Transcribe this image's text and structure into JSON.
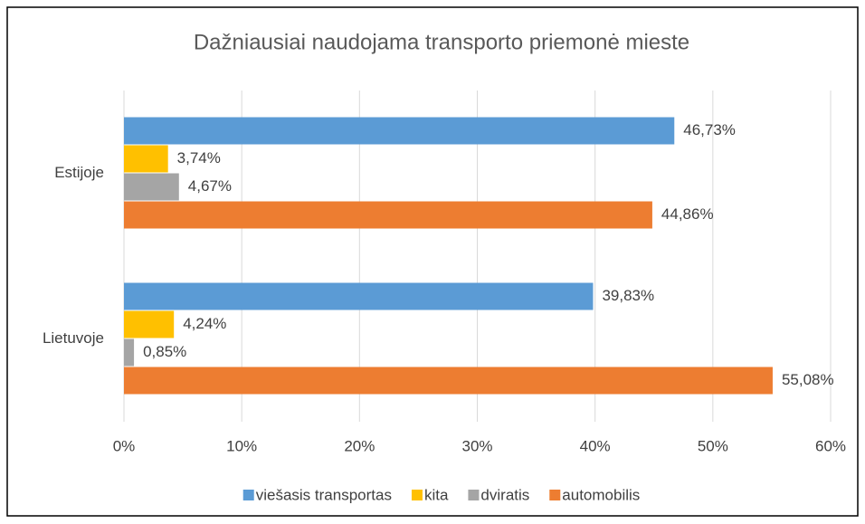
{
  "chart_data": {
    "type": "barh",
    "title": "Dažniausiai naudojama transporto priemonė mieste",
    "categories": [
      "Estijoje",
      "Lietuvoje"
    ],
    "series": [
      {
        "name": "viešasis transportas",
        "color": "#5b9bd5",
        "values": [
          46.73,
          39.83
        ],
        "value_labels": [
          "46,73%",
          "39,83%"
        ]
      },
      {
        "name": "kita",
        "color": "#ffc000",
        "values": [
          3.74,
          4.24
        ],
        "value_labels": [
          "3,74%",
          "4,24%"
        ]
      },
      {
        "name": "dviratis",
        "color": "#a5a5a5",
        "values": [
          4.67,
          0.85
        ],
        "value_labels": [
          "4,67%",
          "0,85%"
        ]
      },
      {
        "name": "automobilis",
        "color": "#ed7d31",
        "values": [
          44.86,
          55.08
        ],
        "value_labels": [
          "44,86%",
          "55,08%"
        ]
      }
    ],
    "xlim": [
      0,
      60
    ],
    "xticks": [
      {
        "value": 0,
        "label": "0%"
      },
      {
        "value": 10,
        "label": "10%"
      },
      {
        "value": 20,
        "label": "20%"
      },
      {
        "value": 30,
        "label": "30%"
      },
      {
        "value": 40,
        "label": "40%"
      },
      {
        "value": 50,
        "label": "50%"
      },
      {
        "value": 60,
        "label": "60%"
      }
    ],
    "grid": true,
    "legend": "bottom"
  }
}
